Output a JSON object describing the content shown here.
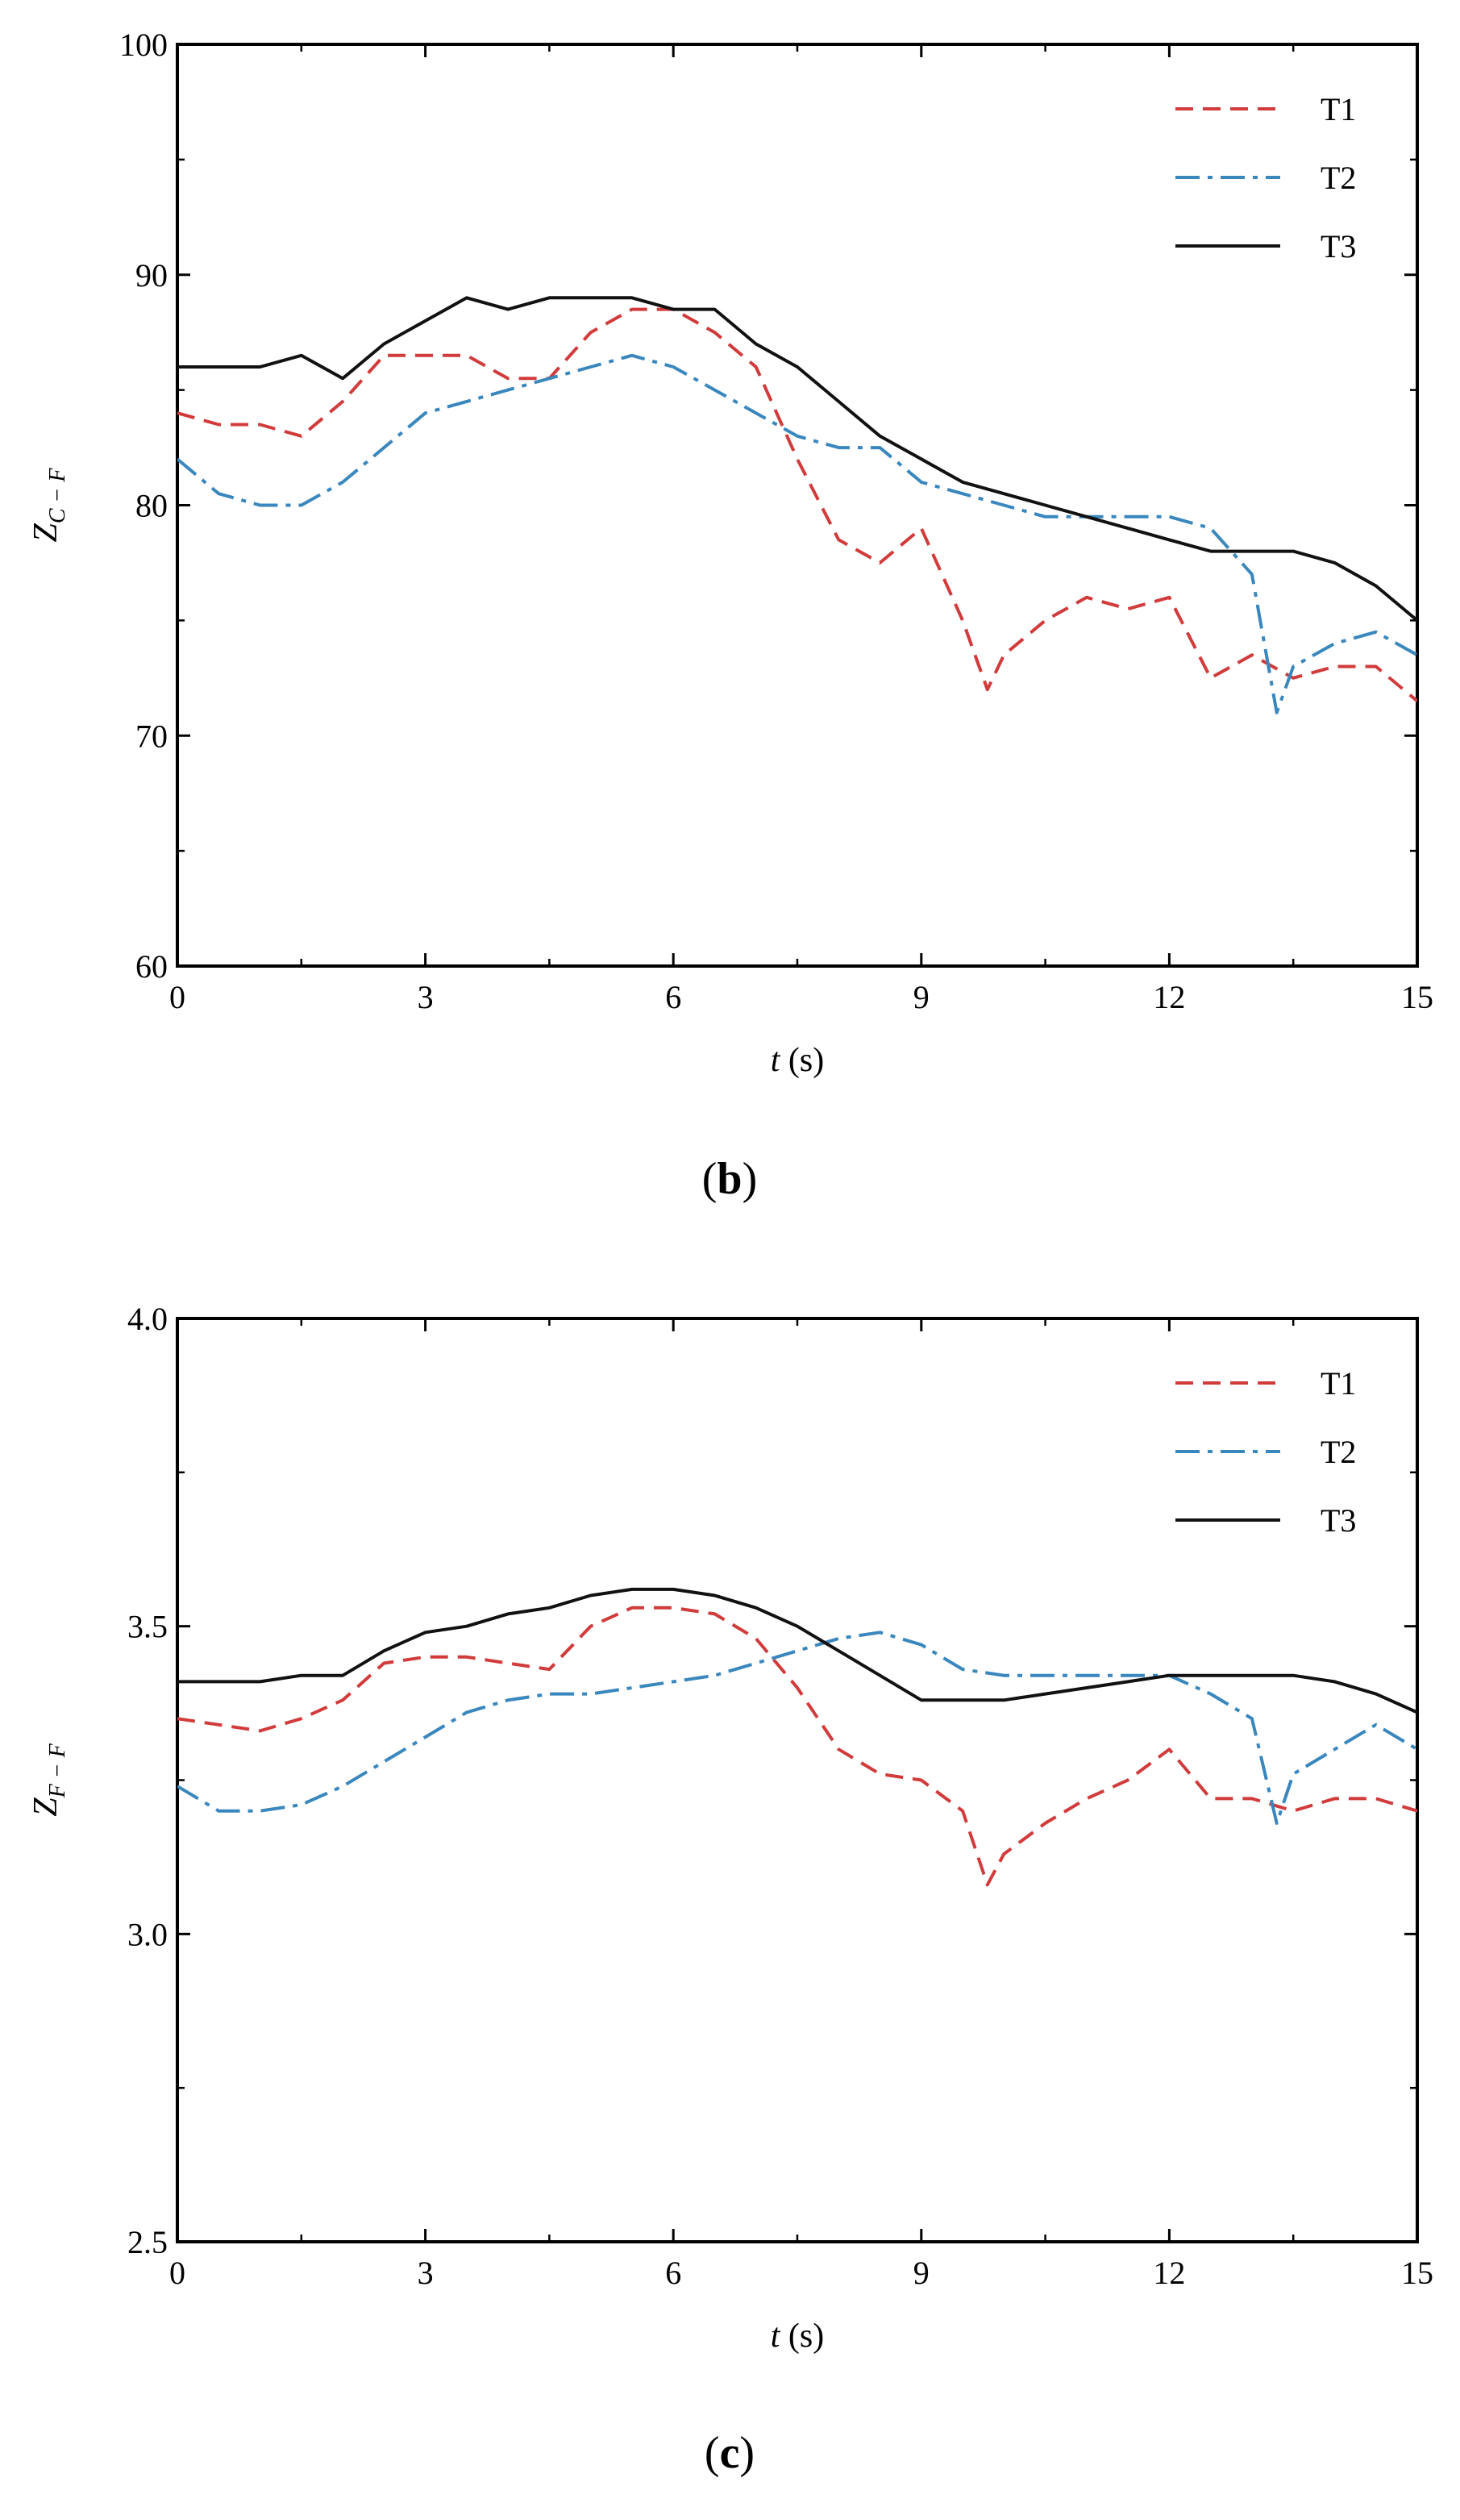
{
  "chart_data": [
    {
      "type": "line",
      "panel_label": "b",
      "xlabel": "t",
      "xlabel_unit": "(s)",
      "ylabel_main": "Z",
      "ylabel_sub": "C − F",
      "xlim": [
        0,
        15
      ],
      "ylim": [
        60,
        100
      ],
      "x_ticks": [
        0,
        3,
        6,
        9,
        12,
        15
      ],
      "y_ticks": [
        60,
        70,
        80,
        90,
        100
      ],
      "x_tick_labels": [
        "0",
        "3",
        "6",
        "9",
        "12",
        "15"
      ],
      "y_tick_labels": [
        "60",
        "70",
        "80",
        "90",
        "100"
      ],
      "legend_position": "top-right",
      "series": [
        {
          "name": "T1",
          "color": "#d13b3b",
          "style": "dashed",
          "x": [
            0,
            0.5,
            1,
            1.5,
            2,
            2.5,
            3,
            3.5,
            4,
            4.5,
            5,
            5.5,
            6,
            6.5,
            7,
            7.5,
            8,
            8.5,
            9,
            9.5,
            9.8,
            10,
            10.5,
            11,
            11.5,
            12,
            12.5,
            13,
            13.5,
            14,
            14.5,
            15
          ],
          "y": [
            84,
            83.5,
            83.5,
            83,
            84.5,
            86.5,
            86.5,
            86.5,
            85.5,
            85.5,
            87.5,
            88.5,
            88.5,
            87.5,
            86,
            82,
            78.5,
            77.5,
            79,
            75,
            72,
            73.5,
            75,
            76,
            75.5,
            76,
            72.5,
            73.5,
            72.5,
            73,
            73,
            71.5
          ]
        },
        {
          "name": "T2",
          "color": "#3a87be",
          "style": "dashdot",
          "x": [
            0,
            0.5,
            1,
            1.5,
            2,
            2.5,
            3,
            3.5,
            4,
            4.5,
            5,
            5.5,
            6,
            6.5,
            7,
            7.5,
            8,
            8.5,
            9,
            9.5,
            10,
            10.5,
            11,
            11.5,
            12,
            12.5,
            13,
            13.3,
            13.5,
            14,
            14.5,
            15
          ],
          "y": [
            82,
            80.5,
            80,
            80,
            81,
            82.5,
            84,
            84.5,
            85,
            85.5,
            86,
            86.5,
            86,
            85,
            84,
            83,
            82.5,
            82.5,
            81,
            80.5,
            80,
            79.5,
            79.5,
            79.5,
            79.5,
            79,
            77,
            71,
            73,
            74,
            74.5,
            73.5
          ]
        },
        {
          "name": "T3",
          "color": "#111111",
          "style": "solid",
          "x": [
            0,
            0.5,
            1,
            1.5,
            2,
            2.5,
            3,
            3.5,
            4,
            4.5,
            5,
            5.5,
            6,
            6.5,
            7,
            7.5,
            8,
            8.5,
            9,
            9.5,
            10,
            10.5,
            11,
            11.5,
            12,
            12.5,
            13,
            13.5,
            14,
            14.5,
            15
          ],
          "y": [
            86,
            86,
            86,
            86.5,
            85.5,
            87,
            88,
            89,
            88.5,
            89,
            89,
            89,
            88.5,
            88.5,
            87,
            86,
            84.5,
            83,
            82,
            81,
            80.5,
            80,
            79.5,
            79,
            78.5,
            78,
            78,
            78,
            77.5,
            76.5,
            75
          ]
        }
      ]
    },
    {
      "type": "line",
      "panel_label": "c",
      "xlabel": "t",
      "xlabel_unit": "(s)",
      "ylabel_main": "Z",
      "ylabel_sub": "F − F",
      "xlim": [
        0,
        15
      ],
      "ylim": [
        2.5,
        4.0
      ],
      "x_ticks": [
        0,
        3,
        6,
        9,
        12,
        15
      ],
      "y_ticks": [
        2.5,
        3.0,
        3.5,
        4.0
      ],
      "x_tick_labels": [
        "0",
        "3",
        "6",
        "9",
        "12",
        "15"
      ],
      "y_tick_labels": [
        "2.5",
        "3.0",
        "3.5",
        "4.0"
      ],
      "legend_position": "top-right",
      "series": [
        {
          "name": "T1",
          "color": "#d13b3b",
          "style": "dashed",
          "x": [
            0,
            0.5,
            1,
            1.5,
            2,
            2.5,
            3,
            3.5,
            4,
            4.5,
            5,
            5.5,
            6,
            6.5,
            7,
            7.5,
            8,
            8.5,
            9,
            9.5,
            9.8,
            10,
            10.5,
            11,
            11.5,
            12,
            12.5,
            13,
            13.5,
            14,
            14.5,
            15
          ],
          "y": [
            3.35,
            3.34,
            3.33,
            3.35,
            3.38,
            3.44,
            3.45,
            3.45,
            3.44,
            3.43,
            3.5,
            3.53,
            3.53,
            3.52,
            3.48,
            3.4,
            3.3,
            3.26,
            3.25,
            3.2,
            3.08,
            3.13,
            3.18,
            3.22,
            3.25,
            3.3,
            3.22,
            3.22,
            3.2,
            3.22,
            3.22,
            3.2
          ]
        },
        {
          "name": "T2",
          "color": "#3a87be",
          "style": "dashdot",
          "x": [
            0,
            0.5,
            1,
            1.5,
            2,
            2.5,
            3,
            3.5,
            4,
            4.5,
            5,
            5.5,
            6,
            6.5,
            7,
            7.5,
            8,
            8.5,
            9,
            9.5,
            10,
            10.5,
            11,
            11.5,
            12,
            12.5,
            13,
            13.3,
            13.5,
            14,
            14.5,
            15
          ],
          "y": [
            3.24,
            3.2,
            3.2,
            3.21,
            3.24,
            3.28,
            3.32,
            3.36,
            3.38,
            3.39,
            3.39,
            3.4,
            3.41,
            3.42,
            3.44,
            3.46,
            3.48,
            3.49,
            3.47,
            3.43,
            3.42,
            3.42,
            3.42,
            3.42,
            3.42,
            3.39,
            3.35,
            3.18,
            3.26,
            3.3,
            3.34,
            3.3
          ]
        },
        {
          "name": "T3",
          "color": "#111111",
          "style": "solid",
          "x": [
            0,
            0.5,
            1,
            1.5,
            2,
            2.5,
            3,
            3.5,
            4,
            4.5,
            5,
            5.5,
            6,
            6.5,
            7,
            7.5,
            8,
            8.5,
            9,
            9.5,
            10,
            10.5,
            11,
            11.5,
            12,
            12.5,
            13,
            13.5,
            14,
            14.5,
            15
          ],
          "y": [
            3.41,
            3.41,
            3.41,
            3.42,
            3.42,
            3.46,
            3.49,
            3.5,
            3.52,
            3.53,
            3.55,
            3.56,
            3.56,
            3.55,
            3.53,
            3.5,
            3.46,
            3.42,
            3.38,
            3.38,
            3.38,
            3.39,
            3.4,
            3.41,
            3.42,
            3.42,
            3.42,
            3.42,
            3.41,
            3.39,
            3.36
          ]
        }
      ]
    }
  ]
}
